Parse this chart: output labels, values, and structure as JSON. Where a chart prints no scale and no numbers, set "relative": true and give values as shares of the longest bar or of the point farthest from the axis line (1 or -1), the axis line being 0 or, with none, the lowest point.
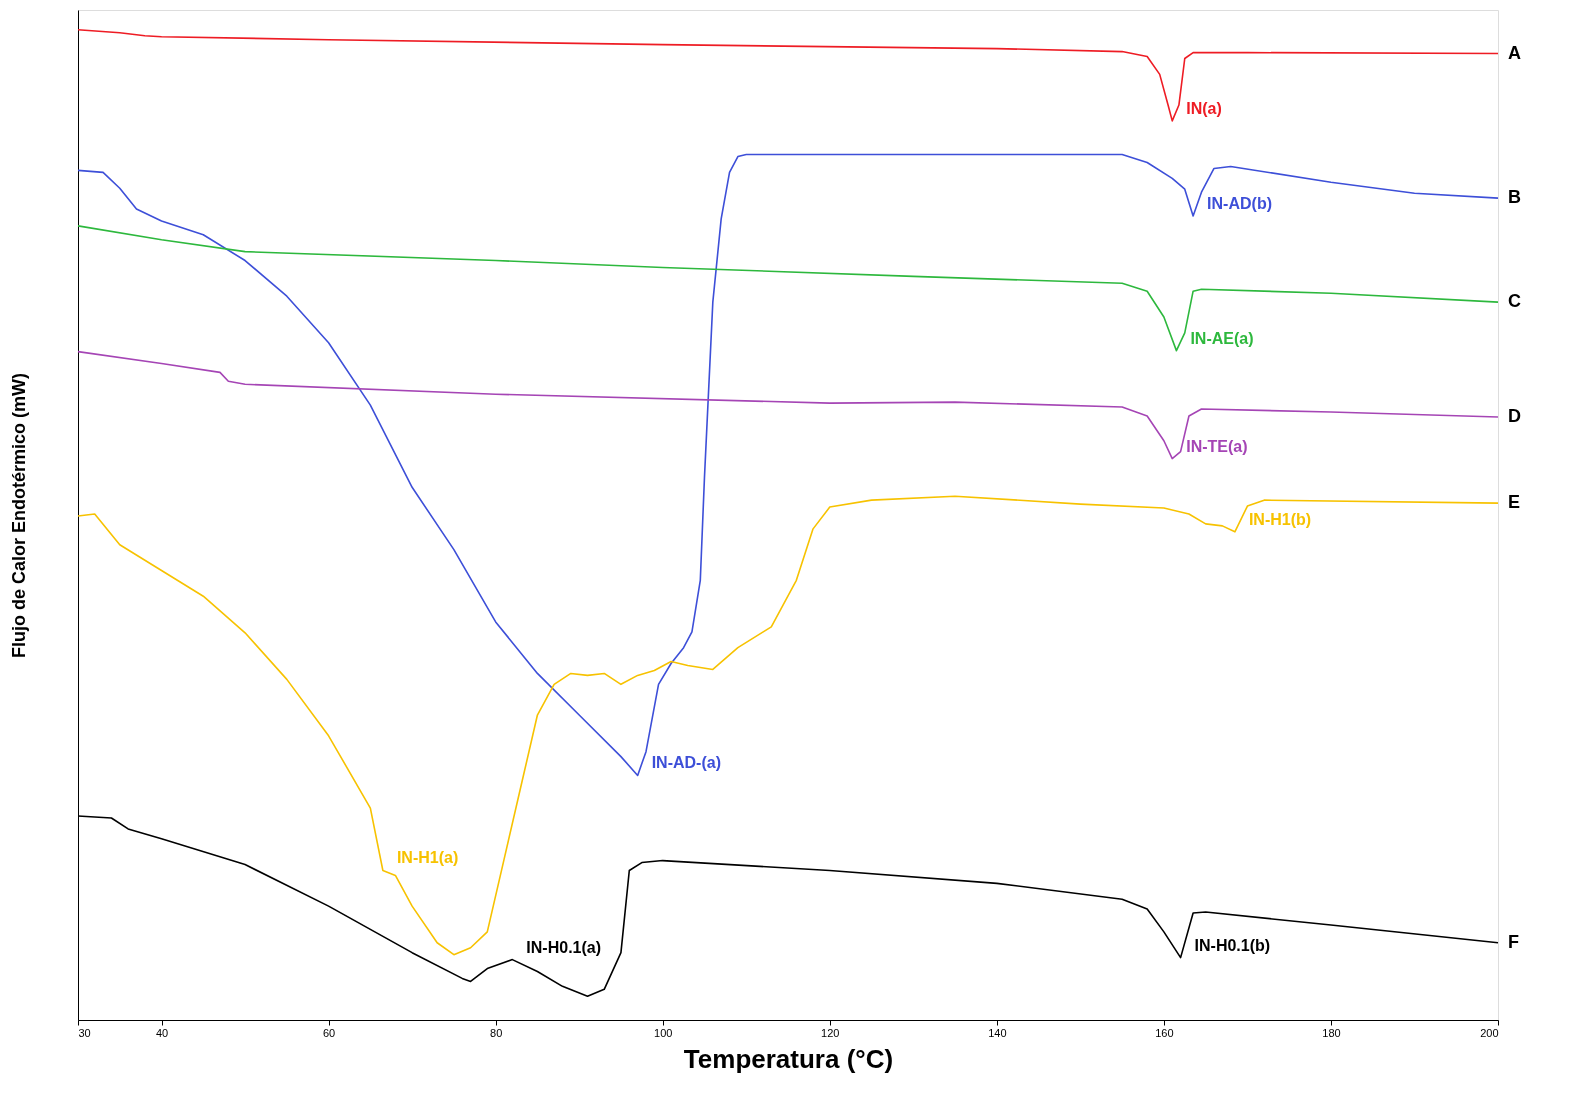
{
  "chart_data": {
    "type": "line",
    "relative": true,
    "xlabel": "Temperatura (°C)",
    "ylabel": "Flujo de Calor Endotérmico (mW)",
    "xlim": [
      30,
      200
    ],
    "xticks": [
      30,
      40,
      60,
      80,
      100,
      120,
      140,
      160,
      180,
      200
    ],
    "grid": false,
    "legend": false,
    "series": [
      {
        "name": "A",
        "color": "#ee1c24",
        "x": [
          30,
          35,
          38,
          40,
          60,
          100,
          140,
          155,
          158,
          159.5,
          160.5,
          161,
          161.8,
          162.5,
          163.5,
          170,
          200
        ],
        "values": [
          1.0,
          0.997,
          0.994,
          0.993,
          0.99,
          0.985,
          0.981,
          0.978,
          0.973,
          0.955,
          0.924,
          0.908,
          0.924,
          0.971,
          0.977,
          0.977,
          0.976
        ]
      },
      {
        "name": "B",
        "color": "#3d4fd8",
        "x": [
          30,
          33,
          35,
          37,
          40,
          45,
          50,
          55,
          60,
          65,
          70,
          75,
          80,
          85,
          90,
          95,
          97,
          98,
          99.5,
          101,
          102.5,
          103.5,
          104.5,
          105,
          106,
          107,
          108,
          109,
          110,
          130,
          155,
          158,
          161,
          162.5,
          163.5,
          164.5,
          166,
          168,
          180,
          190,
          200
        ],
        "values": [
          0.858,
          0.856,
          0.84,
          0.819,
          0.807,
          0.793,
          0.767,
          0.731,
          0.684,
          0.621,
          0.538,
          0.475,
          0.402,
          0.35,
          0.308,
          0.266,
          0.247,
          0.271,
          0.339,
          0.36,
          0.376,
          0.392,
          0.444,
          0.548,
          0.725,
          0.809,
          0.856,
          0.872,
          0.874,
          0.874,
          0.874,
          0.866,
          0.85,
          0.839,
          0.812,
          0.836,
          0.86,
          0.862,
          0.846,
          0.835,
          0.83
        ]
      },
      {
        "name": "C",
        "color": "#2db83d",
        "x": [
          30,
          40,
          50,
          80,
          100,
          130,
          155,
          158,
          160,
          161.5,
          162.5,
          163.5,
          164.5,
          180,
          200
        ],
        "values": [
          0.802,
          0.788,
          0.776,
          0.767,
          0.76,
          0.751,
          0.744,
          0.736,
          0.71,
          0.676,
          0.694,
          0.736,
          0.738,
          0.734,
          0.725
        ]
      },
      {
        "name": "D",
        "color": "#a545b5",
        "x": [
          30,
          40,
          47,
          48,
          50,
          80,
          120,
          135,
          155,
          158,
          160,
          161,
          162,
          163,
          164.5,
          180,
          200
        ],
        "values": [
          0.675,
          0.663,
          0.654,
          0.645,
          0.642,
          0.632,
          0.623,
          0.624,
          0.619,
          0.61,
          0.585,
          0.567,
          0.574,
          0.61,
          0.617,
          0.614,
          0.609
        ]
      },
      {
        "name": "E",
        "color": "#f7c200",
        "x": [
          30,
          32,
          35,
          40,
          45,
          50,
          55,
          60,
          65,
          66.5,
          68,
          70,
          73,
          75,
          77,
          79,
          81,
          83,
          85,
          87,
          89,
          91,
          93,
          95,
          97,
          99,
          101,
          103,
          106,
          109,
          113,
          116,
          118,
          120,
          125,
          135,
          150,
          160,
          163,
          165,
          167,
          168.5,
          170,
          172,
          200
        ],
        "values": [
          0.509,
          0.511,
          0.48,
          0.454,
          0.428,
          0.391,
          0.344,
          0.287,
          0.214,
          0.151,
          0.146,
          0.115,
          0.078,
          0.066,
          0.073,
          0.089,
          0.162,
          0.235,
          0.308,
          0.339,
          0.35,
          0.348,
          0.35,
          0.339,
          0.348,
          0.353,
          0.362,
          0.358,
          0.354,
          0.376,
          0.397,
          0.444,
          0.496,
          0.518,
          0.525,
          0.529,
          0.521,
          0.517,
          0.511,
          0.501,
          0.499,
          0.493,
          0.519,
          0.525,
          0.522
        ]
      },
      {
        "name": "F",
        "color": "#000000",
        "x": [
          30,
          34,
          36,
          40,
          50,
          60,
          70,
          76,
          77,
          79,
          82,
          85,
          88,
          91,
          93,
          95,
          96,
          97.5,
          100,
          120,
          140,
          155,
          158,
          160,
          162,
          163.5,
          165,
          180,
          200
        ],
        "values": [
          0.206,
          0.204,
          0.193,
          0.183,
          0.157,
          0.115,
          0.068,
          0.042,
          0.039,
          0.052,
          0.061,
          0.049,
          0.034,
          0.024,
          0.031,
          0.068,
          0.151,
          0.159,
          0.161,
          0.151,
          0.138,
          0.122,
          0.112,
          0.089,
          0.063,
          0.108,
          0.109,
          0.096,
          0.078
        ]
      }
    ],
    "annotations": [
      {
        "text": "IN(a)",
        "x": 161,
        "y": 0.908
      },
      {
        "text": "IN-AD(b)",
        "x": 163.5,
        "y": 0.812
      },
      {
        "text": "IN-AE(a)",
        "x": 161.5,
        "y": 0.676
      },
      {
        "text": "IN-TE(a)",
        "x": 161,
        "y": 0.567
      },
      {
        "text": "IN-H1(b)",
        "x": 168.5,
        "y": 0.493
      },
      {
        "text": "IN-AD-(a)",
        "x": 97,
        "y": 0.247
      },
      {
        "text": "IN-H1(a)",
        "x": 66.5,
        "y": 0.151
      },
      {
        "text": "IN-H0.1(a)",
        "x": 82,
        "y": 0.061
      },
      {
        "text": "IN-H0.1(b)",
        "x": 162,
        "y": 0.063
      }
    ]
  }
}
